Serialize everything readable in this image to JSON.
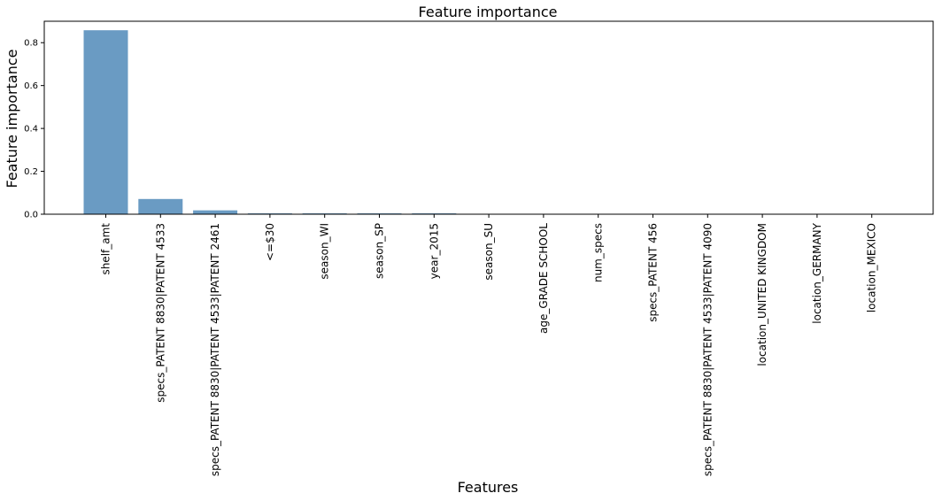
{
  "chart_data": {
    "type": "bar",
    "title": "Feature importance",
    "xlabel": "Features",
    "ylabel": "Feature importance",
    "categories": [
      "shelf_amt",
      "specs_PATENT 8830|PATENT 4533",
      "specs_PATENT 8830|PATENT 4533|PATENT 2461",
      "<=$30",
      "season_WI",
      "season_SP",
      "year_2015",
      "season_SU",
      "age_GRADE SCHOOL",
      "num_specs",
      "specs_PATENT 456",
      "specs_PATENT 8830|PATENT 4533|PATENT 4090",
      "location_UNITED KINGDOM",
      "location_GERMANY",
      "location_MEXICO"
    ],
    "values": [
      0.858,
      0.071,
      0.018,
      0.004,
      0.004,
      0.004,
      0.004,
      0.0,
      0.0,
      0.0,
      0.0,
      0.0,
      0.0,
      0.0,
      0.0
    ],
    "ylim": [
      0,
      0.9
    ],
    "yticks": [
      "0.0",
      "0.2",
      "0.4",
      "0.6",
      "0.8"
    ],
    "grid": false,
    "bar_color": "#6a9bc3"
  }
}
